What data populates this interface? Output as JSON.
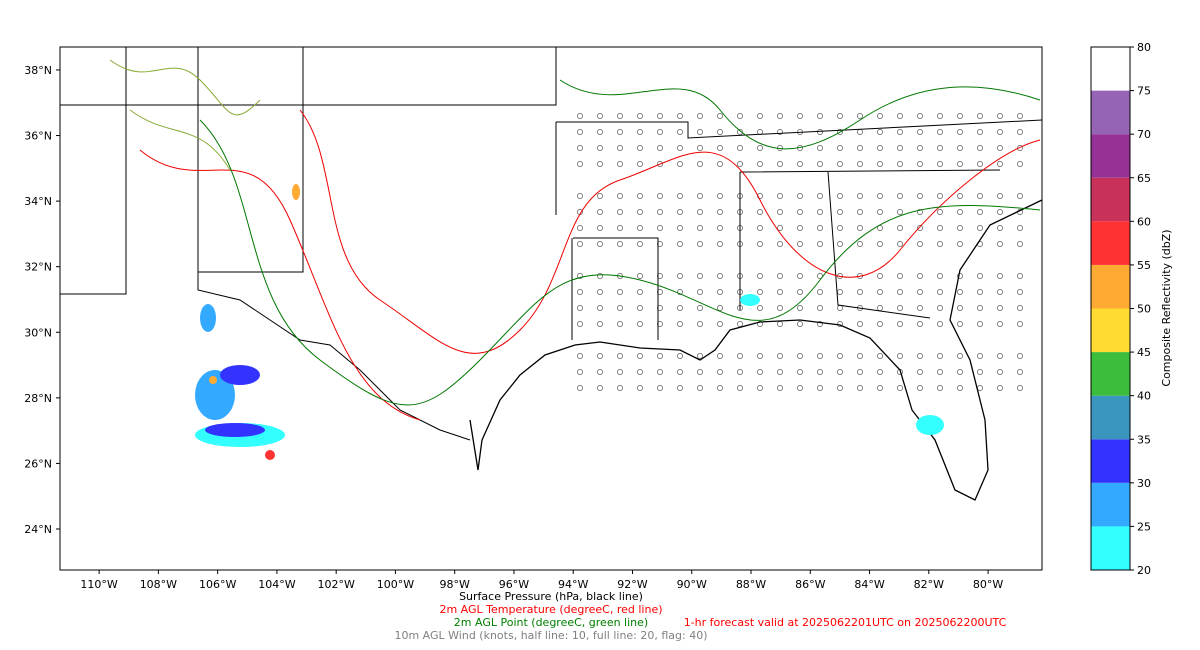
{
  "map": {
    "lat_range": [
      22.75,
      38.7
    ],
    "lon_range": [
      -111.32,
      -78.18
    ],
    "lat_ticks": [
      {
        "value": 38,
        "label": "38°N"
      },
      {
        "value": 36,
        "label": "36°N"
      },
      {
        "value": 34,
        "label": "34°N"
      },
      {
        "value": 32,
        "label": "32°N"
      },
      {
        "value": 30,
        "label": "30°N"
      },
      {
        "value": 28,
        "label": "28°N"
      },
      {
        "value": 26,
        "label": "26°N"
      },
      {
        "value": 24,
        "label": "24°N"
      }
    ],
    "lon_ticks": [
      {
        "value": -110,
        "label": "110°W"
      },
      {
        "value": -108,
        "label": "108°W"
      },
      {
        "value": -106,
        "label": "106°W"
      },
      {
        "value": -104,
        "label": "104°W"
      },
      {
        "value": -102,
        "label": "102°W"
      },
      {
        "value": -100,
        "label": "100°W"
      },
      {
        "value": -98,
        "label": "98°W"
      },
      {
        "value": -96,
        "label": "96°W"
      },
      {
        "value": -94,
        "label": "94°W"
      },
      {
        "value": -92,
        "label": "92°W"
      },
      {
        "value": -90,
        "label": "90°W"
      },
      {
        "value": -88,
        "label": "88°W"
      },
      {
        "value": -86,
        "label": "86°W"
      },
      {
        "value": -84,
        "label": "84°W"
      },
      {
        "value": -82,
        "label": "82°W"
      },
      {
        "value": -80,
        "label": "80°W"
      }
    ],
    "colorbar": {
      "label": "Composite Reflectivity (dbZ)",
      "levels": [
        20,
        25,
        30,
        35,
        40,
        45,
        50,
        55,
        60,
        65,
        70,
        75,
        80
      ],
      "colors": [
        "#33ffff",
        "#33aaff",
        "#3333ff",
        "#3a96be",
        "#3cbe3c",
        "#ffdc32",
        "#ffaa32",
        "#ff3232",
        "#c8325a",
        "#963296",
        "#9664b4",
        "#ffffff"
      ]
    },
    "captions": [
      {
        "text": "Surface Pressure (hPa, black line)",
        "color": "#000000"
      },
      {
        "text": "2m AGL Temperature (degreeC, red line)",
        "color": "#ff0000"
      },
      {
        "text": "2m AGL Point (degreeC, green line)",
        "color": "#008000"
      },
      {
        "text": "10m AGL Wind (knots, half line: 10, full line: 20, flag: 40)",
        "color": "#808080"
      }
    ],
    "forecast_note": {
      "text": "1-hr forecast valid at 2025062201UTC on 2025062200UTC",
      "color": "#ff0000"
    }
  }
}
